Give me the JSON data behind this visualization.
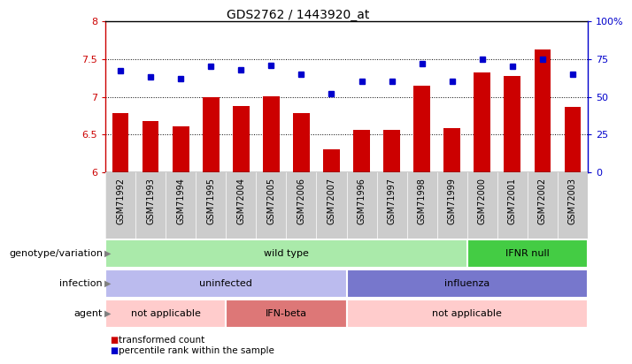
{
  "title": "GDS2762 / 1443920_at",
  "samples": [
    "GSM71992",
    "GSM71993",
    "GSM71994",
    "GSM71995",
    "GSM72004",
    "GSM72005",
    "GSM72006",
    "GSM72007",
    "GSM71996",
    "GSM71997",
    "GSM71998",
    "GSM71999",
    "GSM72000",
    "GSM72001",
    "GSM72002",
    "GSM72003"
  ],
  "bar_values": [
    6.78,
    6.68,
    6.61,
    6.99,
    6.88,
    7.01,
    6.78,
    6.3,
    6.56,
    6.56,
    7.15,
    6.59,
    7.32,
    7.27,
    7.62,
    6.87
  ],
  "dot_values": [
    67,
    63,
    62,
    70,
    68,
    71,
    65,
    52,
    60,
    60,
    72,
    60,
    75,
    70,
    75,
    65
  ],
  "bar_color": "#cc0000",
  "dot_color": "#0000cc",
  "ylim_left": [
    6.0,
    8.0
  ],
  "ylim_right": [
    0,
    100
  ],
  "yticks_left": [
    6.0,
    6.5,
    7.0,
    7.5,
    8.0
  ],
  "ytick_labels_left": [
    "6",
    "6.5",
    "7",
    "7.5",
    "8"
  ],
  "yticks_right": [
    0,
    25,
    50,
    75,
    100
  ],
  "ytick_labels_right": [
    "0",
    "25",
    "50",
    "75",
    "100%"
  ],
  "hlines": [
    6.5,
    7.0,
    7.5
  ],
  "xtick_bg_color": "#cccccc",
  "annotation_rows": [
    {
      "label": "genotype/variation",
      "segments": [
        {
          "text": "wild type",
          "start": 0,
          "end": 12,
          "color": "#aaeaaa"
        },
        {
          "text": "IFNR null",
          "start": 12,
          "end": 16,
          "color": "#44cc44"
        }
      ]
    },
    {
      "label": "infection",
      "segments": [
        {
          "text": "uninfected",
          "start": 0,
          "end": 8,
          "color": "#bbbbee"
        },
        {
          "text": "influenza",
          "start": 8,
          "end": 16,
          "color": "#7777cc"
        }
      ]
    },
    {
      "label": "agent",
      "segments": [
        {
          "text": "not applicable",
          "start": 0,
          "end": 4,
          "color": "#ffcccc"
        },
        {
          "text": "IFN-beta",
          "start": 4,
          "end": 8,
          "color": "#dd7777"
        },
        {
          "text": "not applicable",
          "start": 8,
          "end": 16,
          "color": "#ffcccc"
        }
      ]
    }
  ],
  "legend_items": [
    {
      "label": "transformed count",
      "color": "#cc0000"
    },
    {
      "label": "percentile rank within the sample",
      "color": "#0000cc"
    }
  ]
}
